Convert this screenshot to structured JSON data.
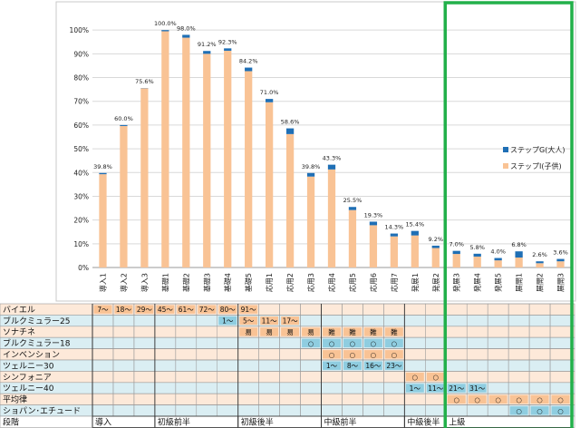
{
  "chart_data": {
    "type": "bar",
    "stacked": true,
    "categories": [
      "導入1",
      "導入2",
      "導入3",
      "基礎1",
      "基礎2",
      "基礎3",
      "基礎4",
      "基礎5",
      "応用1",
      "応用2",
      "応用3",
      "応用4",
      "応用5",
      "応用6",
      "応用7",
      "発展1",
      "発展2",
      "発展3",
      "発展4",
      "発展5",
      "展開1",
      "展開2",
      "展開3"
    ],
    "series": [
      {
        "name": "ステップⅠ(子供)",
        "color": "#f9c395",
        "values": [
          39.3,
          59.6,
          75.5,
          99.5,
          96.8,
          90.0,
          91.3,
          82.7,
          69.6,
          56.2,
          38.3,
          41.3,
          24.2,
          17.8,
          13.1,
          13.5,
          8.2,
          5.7,
          4.6,
          3.0,
          4.2,
          1.8,
          2.6
        ]
      },
      {
        "name": "ステップG(大人)",
        "color": "#1f6fb5",
        "values": [
          0.5,
          0.4,
          0.1,
          0.5,
          1.2,
          1.2,
          1.0,
          1.5,
          1.4,
          2.4,
          1.5,
          2.0,
          1.3,
          1.5,
          1.2,
          1.9,
          1.0,
          1.3,
          1.2,
          1.0,
          2.6,
          0.8,
          1.0
        ]
      }
    ],
    "data_labels": [
      "39.8%",
      "60.0%",
      "75.6%",
      "100.0%",
      "98.0%",
      "91.2%",
      "92.3%",
      "84.2%",
      "71.0%",
      "58.6%",
      "39.8%",
      "43.3%",
      "25.5%",
      "19.3%",
      "14.3%",
      "15.4%",
      "9.2%",
      "7.0%",
      "5.8%",
      "4.0%",
      "6.8%",
      "2.6%",
      "3.6%"
    ],
    "yticks": [
      "0%",
      "10%",
      "20%",
      "30%",
      "40%",
      "50%",
      "60%",
      "70%",
      "80%",
      "90%",
      "100%"
    ],
    "ylim": [
      0,
      110
    ],
    "legend_position": "right",
    "grid": true
  },
  "table": {
    "rows": [
      {
        "label": "バイエル",
        "cells": [
          {
            "c": 0,
            "t": "7～",
            "bg": "#f9c395"
          },
          {
            "c": 1,
            "t": "18～",
            "bg": "#f9c395"
          },
          {
            "c": 2,
            "t": "29～",
            "bg": "#f9c395"
          },
          {
            "c": 3,
            "t": "45～",
            "bg": "#f9c395"
          },
          {
            "c": 4,
            "t": "61～",
            "bg": "#f9c395"
          },
          {
            "c": 5,
            "t": "72～",
            "bg": "#f9c395"
          },
          {
            "c": 6,
            "t": "80～",
            "bg": "#f9c395"
          },
          {
            "c": 7,
            "t": "91～",
            "bg": "#f9c395"
          }
        ]
      },
      {
        "label": "ブルクミュラー25",
        "cells": [
          {
            "c": 6,
            "t": "1～",
            "bg": "#8fcde0"
          },
          {
            "c": 7,
            "t": "5～",
            "bg": "#f9c395"
          },
          {
            "c": 8,
            "t": "11～",
            "bg": "#f9c395"
          },
          {
            "c": 9,
            "t": "17～",
            "bg": "#f9c395"
          }
        ]
      },
      {
        "label": "ソナチネ",
        "cells": [
          {
            "c": 7,
            "t": "易",
            "bg": "#f9c395"
          },
          {
            "c": 8,
            "t": "易",
            "bg": "#f9c395"
          },
          {
            "c": 9,
            "t": "易",
            "bg": "#f9c395"
          },
          {
            "c": 10,
            "t": "易",
            "bg": "#f9c395"
          },
          {
            "c": 11,
            "t": "難",
            "bg": "#f9c395"
          },
          {
            "c": 12,
            "t": "難",
            "bg": "#f9c395"
          },
          {
            "c": 13,
            "t": "難",
            "bg": "#f9c395"
          },
          {
            "c": 14,
            "t": "難",
            "bg": "#f9c395"
          }
        ]
      },
      {
        "label": "ブルクミュラー18",
        "cells": [
          {
            "c": 10,
            "t": "○",
            "bg": "#8fcde0"
          },
          {
            "c": 11,
            "t": "○",
            "bg": "#8fcde0"
          },
          {
            "c": 12,
            "t": "○",
            "bg": "#8fcde0"
          },
          {
            "c": 13,
            "t": "○",
            "bg": "#8fcde0"
          },
          {
            "c": 14,
            "t": "○",
            "bg": "#8fcde0"
          }
        ]
      },
      {
        "label": "インベンション",
        "cells": [
          {
            "c": 11,
            "t": "○",
            "bg": "#f9c395"
          },
          {
            "c": 12,
            "t": "○",
            "bg": "#f9c395"
          },
          {
            "c": 13,
            "t": "○",
            "bg": "#f9c395"
          },
          {
            "c": 14,
            "t": "○",
            "bg": "#f9c395"
          }
        ]
      },
      {
        "label": "ツェルニー30",
        "cells": [
          {
            "c": 11,
            "t": "1～",
            "bg": "#8fcde0"
          },
          {
            "c": 12,
            "t": "8～",
            "bg": "#8fcde0"
          },
          {
            "c": 13,
            "t": "16～",
            "bg": "#8fcde0"
          },
          {
            "c": 14,
            "t": "23～",
            "bg": "#8fcde0"
          }
        ]
      },
      {
        "label": "シンフォニア",
        "cells": [
          {
            "c": 15,
            "t": "○",
            "bg": "#f9c395"
          },
          {
            "c": 16,
            "t": "○",
            "bg": "#f9c395"
          }
        ]
      },
      {
        "label": "ツェルニー40",
        "cells": [
          {
            "c": 15,
            "t": "1～",
            "bg": "#8fcde0"
          },
          {
            "c": 16,
            "t": "11～",
            "bg": "#8fcde0"
          },
          {
            "c": 17,
            "t": "21～",
            "bg": "#8fcde0"
          },
          {
            "c": 18,
            "t": "31～",
            "bg": "#8fcde0"
          }
        ]
      },
      {
        "label": "平均律",
        "cells": [
          {
            "c": 17,
            "t": "○",
            "bg": "#f9c395"
          },
          {
            "c": 18,
            "t": "○",
            "bg": "#f9c395"
          },
          {
            "c": 19,
            "t": "○",
            "bg": "#f9c395"
          },
          {
            "c": 20,
            "t": "○",
            "bg": "#f9c395"
          },
          {
            "c": 21,
            "t": "○",
            "bg": "#f9c395"
          },
          {
            "c": 22,
            "t": "○",
            "bg": "#f9c395"
          }
        ]
      },
      {
        "label": "ショパン･エチュード",
        "cells": [
          {
            "c": 20,
            "t": "○",
            "bg": "#8fcde0"
          },
          {
            "c": 21,
            "t": "○",
            "bg": "#8fcde0"
          },
          {
            "c": 22,
            "t": "○",
            "bg": "#8fcde0"
          }
        ]
      }
    ],
    "stage_label": "段階",
    "stages": [
      {
        "label": "導入",
        "from": 0,
        "to": 2
      },
      {
        "label": "初級前半",
        "from": 3,
        "to": 6
      },
      {
        "label": "初級後半",
        "from": 7,
        "to": 10
      },
      {
        "label": "中級前半",
        "from": 11,
        "to": 14
      },
      {
        "label": "中級後半",
        "from": 15,
        "to": 16
      },
      {
        "label": "上級",
        "from": 17,
        "to": 22
      }
    ],
    "row_colors": [
      "#fde9d9",
      "#daeef3"
    ]
  },
  "highlight": {
    "color": "#22b04a",
    "from_category": 17,
    "to_category": 22
  }
}
